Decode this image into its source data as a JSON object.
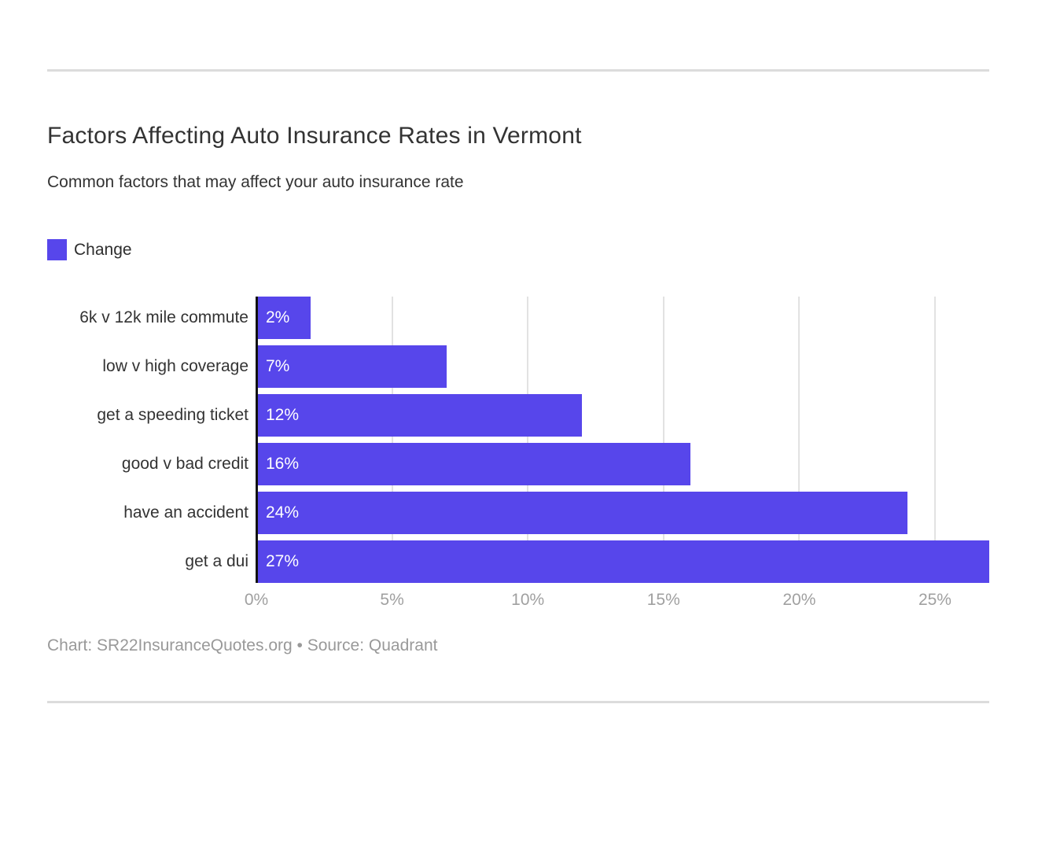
{
  "page": {
    "title": "Factors Affecting Auto Insurance Rates in Vermont",
    "subtitle": "Common factors that may affect your auto insurance rate",
    "footer": "Chart: SR22InsuranceQuotes.org • Source: Quadrant"
  },
  "legend": {
    "label": "Change",
    "color": "#5746eb"
  },
  "chart_data": {
    "type": "bar",
    "orientation": "horizontal",
    "title": "Factors Affecting Auto Insurance Rates in Vermont",
    "subtitle": "Common factors that may affect your auto insurance rate",
    "series_name": "Change",
    "categories": [
      "6k v 12k mile commute",
      "low v high coverage",
      "get a speeding ticket",
      "good v bad credit",
      "have an accident",
      "get a dui"
    ],
    "values": [
      2,
      7,
      12,
      16,
      24,
      27
    ],
    "value_labels": [
      "2%",
      "7%",
      "12%",
      "16%",
      "24%",
      "27%"
    ],
    "xlim": [
      0,
      27
    ],
    "x_tick_values": [
      0,
      5,
      10,
      15,
      20,
      25
    ],
    "x_ticks": [
      "0%",
      "5%",
      "10%",
      "15%",
      "20%",
      "25%"
    ],
    "bar_color": "#5746eb",
    "grid": true,
    "gridline_color": "#e2e2e2",
    "axis_line_color": "#111111",
    "legend_position": "top-left"
  }
}
